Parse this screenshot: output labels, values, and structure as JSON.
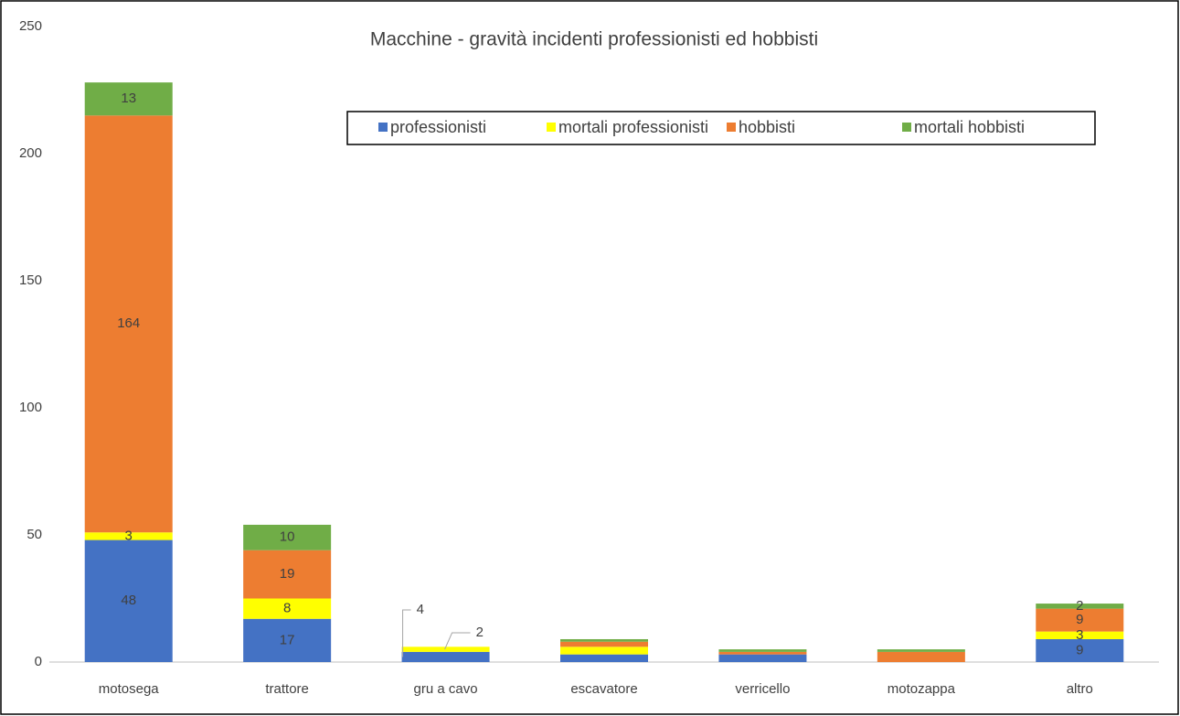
{
  "chart_data": {
    "type": "stacked_bar",
    "title": "Macchine - gravità incidenti professionisti ed hobbisti",
    "categories": [
      "motosega",
      "trattore",
      "gru a cavo",
      "escavatore",
      "verricello",
      "motozappa",
      "altro"
    ],
    "series": [
      {
        "name": "professionisti",
        "color": "#4472c4",
        "values": [
          48,
          17,
          4,
          3,
          3,
          0,
          9
        ],
        "value_labels": [
          "48",
          "17",
          "4",
          null,
          null,
          null,
          "9"
        ]
      },
      {
        "name": "mortali professionisti",
        "color": "#ffff00",
        "values": [
          3,
          8,
          2,
          3,
          0,
          0,
          3
        ],
        "value_labels": [
          "3",
          "8",
          "2",
          null,
          null,
          null,
          "3"
        ]
      },
      {
        "name": "hobbisti",
        "color": "#ed7d31",
        "values": [
          164,
          19,
          0,
          2,
          1,
          4,
          9
        ],
        "value_labels": [
          "164",
          "19",
          null,
          null,
          null,
          null,
          "9"
        ]
      },
      {
        "name": "mortali hobbisti",
        "color": "#70ad47",
        "values": [
          13,
          10,
          0,
          1,
          1,
          1,
          2
        ],
        "value_labels": [
          "13",
          "10",
          null,
          null,
          null,
          null,
          "2"
        ]
      }
    ],
    "ylim": [
      0,
      250
    ],
    "yticks": [
      0,
      50,
      100,
      150,
      200,
      250
    ],
    "grid": false,
    "legend": "top-right"
  }
}
